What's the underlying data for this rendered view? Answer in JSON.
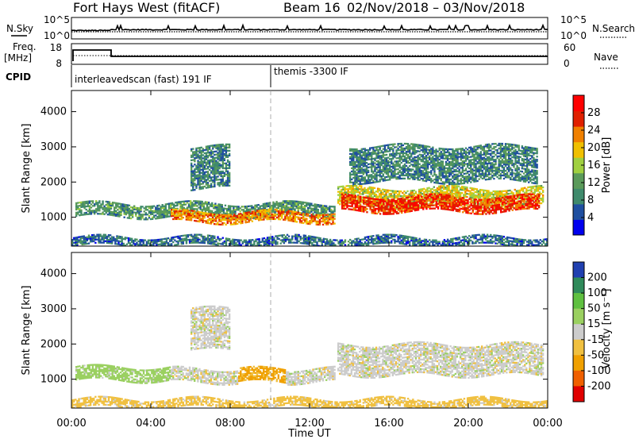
{
  "title": {
    "station": "Fort Hays West (fitACF)",
    "beam": "Beam 16",
    "dates": "02/Nov/2018 – 03/Nov/2018"
  },
  "labels": {
    "nsky": "N.Sky",
    "nsearch": "N.Search",
    "freq": "Freq.",
    "freq_unit": "[MHz]",
    "nave": "Nave",
    "cpid": "CPID",
    "cpid_1": "interleavedscan (fast) 191 IF",
    "cpid_2": "themis -3300 IF",
    "slant_range": "Slant Range [km]",
    "time_axis": "Time UT",
    "power_title": "Power [dB]",
    "velocity_title": "Velocity [m s⁻¹]"
  },
  "noise_ticks": {
    "top": "10^5",
    "bottom": "10^0"
  },
  "freq_ticks": {
    "top": "18",
    "bottom": "8"
  },
  "nave_ticks": {
    "top": "60",
    "bottom": "0"
  },
  "colors": {
    "power": [
      "#0000ee",
      "#1f4fa0",
      "#3f8a6c",
      "#5a9a5a",
      "#a0d040",
      "#f0c000",
      "#f08000",
      "#e02000",
      "#ff0000"
    ],
    "velocity": [
      "#2040b0",
      "#2f8a5a",
      "#5fc040",
      "#9ad060",
      "#cccccc",
      "#f0c040",
      "#f0a000",
      "#f06000",
      "#e00000"
    ]
  },
  "chart_data": [
    {
      "type": "heatmap",
      "name": "power",
      "x": [
        "00:00",
        "04:00",
        "08:00",
        "12:00",
        "16:00",
        "20:00",
        "00:00"
      ],
      "y_ticks": [
        1000,
        2000,
        3000,
        4000
      ],
      "ylabel": "Slant Range [km]",
      "xlabel": "Time UT",
      "ylim": [
        180,
        4600
      ],
      "xlim": [
        0,
        24
      ],
      "colorbar": {
        "label": "Power [dB]",
        "ticks": [
          4,
          8,
          12,
          16,
          20,
          24,
          28
        ],
        "range": [
          0,
          32
        ]
      },
      "bands": [
        {
          "t": [
            0.2,
            13.3
          ],
          "r": [
            1000,
            1400
          ],
          "level": 10
        },
        {
          "t": [
            5.0,
            13.3
          ],
          "r": [
            850,
            1150
          ],
          "level": 24
        },
        {
          "t": [
            13.4,
            23.8
          ],
          "r": [
            1300,
            1800
          ],
          "level": 18
        },
        {
          "t": [
            13.6,
            23.6
          ],
          "r": [
            1150,
            1600
          ],
          "level": 28
        },
        {
          "t": [
            6.0,
            8.0
          ],
          "r": [
            1800,
            3000
          ],
          "level": 8
        },
        {
          "t": [
            14.0,
            23.5
          ],
          "r": [
            2000,
            3000
          ],
          "level": 8
        },
        {
          "t": [
            0.0,
            24.0
          ],
          "r": [
            180,
            450
          ],
          "level": 6
        }
      ]
    },
    {
      "type": "heatmap",
      "name": "velocity",
      "x": [
        "00:00",
        "04:00",
        "08:00",
        "12:00",
        "16:00",
        "20:00",
        "00:00"
      ],
      "y_ticks": [
        1000,
        2000,
        3000,
        4000
      ],
      "ylabel": "Slant Range [km]",
      "xlabel": "Time UT",
      "ylim": [
        180,
        4600
      ],
      "xlim": [
        0,
        24
      ],
      "colorbar": {
        "label": "Velocity [m s⁻¹]",
        "ticks": [
          200,
          100,
          50,
          15,
          -15,
          -50,
          -100,
          -200
        ]
      },
      "bands": [
        {
          "t": [
            0.2,
            5.0
          ],
          "r": [
            950,
            1350
          ],
          "value": 30
        },
        {
          "t": [
            5.0,
            8.4
          ],
          "r": [
            900,
            1300
          ],
          "value": 0
        },
        {
          "t": [
            8.4,
            10.8
          ],
          "r": [
            900,
            1300
          ],
          "value": -60
        },
        {
          "t": [
            10.8,
            13.3
          ],
          "r": [
            900,
            1300
          ],
          "value": 0
        },
        {
          "t": [
            13.4,
            23.8
          ],
          "r": [
            1100,
            2000
          ],
          "value": 0
        },
        {
          "t": [
            6.0,
            8.0
          ],
          "r": [
            1800,
            3000
          ],
          "value": 0
        },
        {
          "t": [
            0.0,
            24.0
          ],
          "r": [
            180,
            450
          ],
          "value": -30
        }
      ]
    }
  ]
}
